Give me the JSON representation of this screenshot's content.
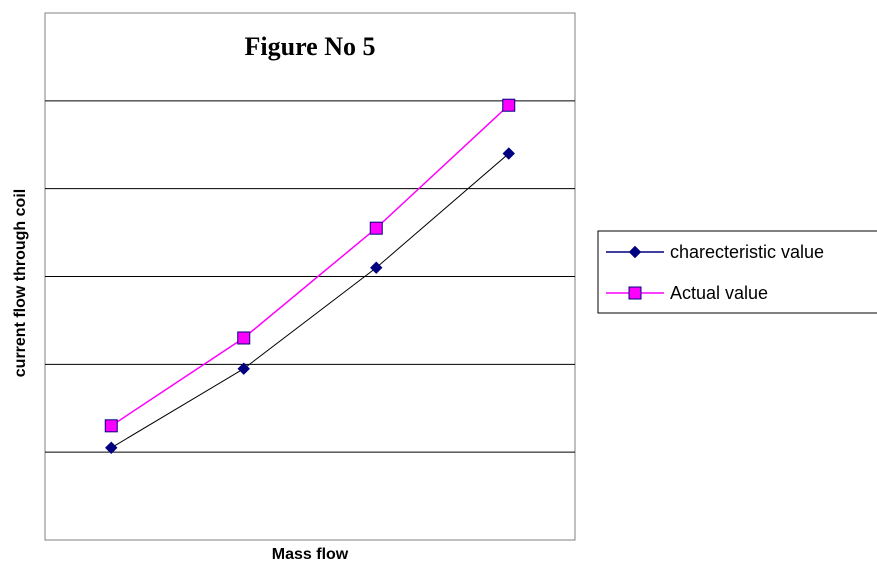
{
  "chart_data": {
    "type": "line",
    "title": "Figure No 5",
    "xlabel": "Mass flow",
    "ylabel": "current flow through coil",
    "x": [
      1,
      2,
      3,
      4
    ],
    "ylim": [
      0,
      6
    ],
    "grid": "horizontal",
    "legend_position": "right",
    "series": [
      {
        "name": "charecteristic value",
        "values": [
          1.05,
          1.95,
          3.1,
          4.4
        ],
        "color": "#000080",
        "marker": "diamond",
        "line_color": "#000000"
      },
      {
        "name": "Actual value",
        "values": [
          1.3,
          2.3,
          3.55,
          4.95
        ],
        "color": "#FF00FF",
        "marker": "square",
        "line_color": "#FF00FF"
      }
    ]
  }
}
